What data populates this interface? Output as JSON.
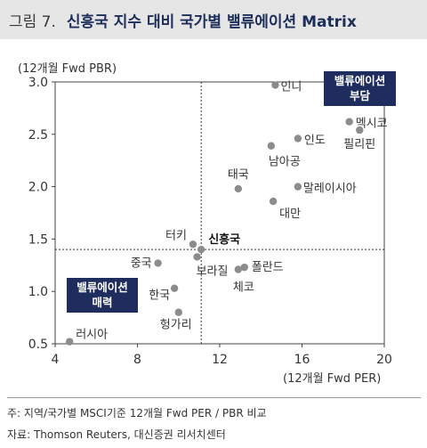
{
  "header": {
    "fig_no": "그림 7.",
    "title": "신흥국 지수 대비 국가별 밸류에이션 Matrix"
  },
  "boxes": {
    "top_line1": "밸류에이션",
    "top_line2": "부담",
    "bottom_line1": "밸류에이션",
    "bottom_line2": "매력"
  },
  "footnotes": {
    "note": "주: 지역/국가별 MSCI기준 12개월 Fwd PER / PBR 비교",
    "source": "자료: Thomson Reuters, 대신증권 리서치센터"
  },
  "colors": {
    "title_bg": "#e6e6e6",
    "title_text": "#1d2e5a",
    "box_bg": "#1e2d5e",
    "point": "#8c8c8c"
  },
  "chart_data": {
    "type": "scatter",
    "xlabel": "(12개월 Fwd PER)",
    "ylabel": "(12개월 Fwd PBR)",
    "xlim": [
      4,
      20
    ],
    "ylim": [
      0.5,
      3.0
    ],
    "xticks": [
      "4",
      "8",
      "12",
      "16",
      "20"
    ],
    "yticks": [
      "0.5",
      "1.0",
      "1.5",
      "2.0",
      "2.5",
      "3.0"
    ],
    "reference": {
      "x": 11.1,
      "y": 1.4
    },
    "grid": false,
    "points": [
      {
        "label": "인니",
        "x": 14.7,
        "y": 2.97
      },
      {
        "label": "멕시코",
        "x": 18.3,
        "y": 2.62
      },
      {
        "label": "필리핀",
        "x": 18.8,
        "y": 2.54
      },
      {
        "label": "인도",
        "x": 15.8,
        "y": 2.46
      },
      {
        "label": "남아공",
        "x": 14.5,
        "y": 2.39
      },
      {
        "label": "태국",
        "x": 12.9,
        "y": 1.98
      },
      {
        "label": "말레이시아",
        "x": 15.8,
        "y": 2.0
      },
      {
        "label": "대만",
        "x": 14.6,
        "y": 1.86
      },
      {
        "label": "터키",
        "x": 10.7,
        "y": 1.45
      },
      {
        "label": "신흥국",
        "x": 11.1,
        "y": 1.4,
        "highlight": true
      },
      {
        "label": "중국",
        "x": 9.0,
        "y": 1.27
      },
      {
        "label": "보라질",
        "x": 10.9,
        "y": 1.33
      },
      {
        "label": "폴란드",
        "x": 13.2,
        "y": 1.23
      },
      {
        "label": "체코",
        "x": 12.9,
        "y": 1.21
      },
      {
        "label": "한국",
        "x": 9.8,
        "y": 1.03
      },
      {
        "label": "헝가리",
        "x": 10.0,
        "y": 0.8
      },
      {
        "label": "러시아",
        "x": 4.7,
        "y": 0.52
      }
    ]
  }
}
